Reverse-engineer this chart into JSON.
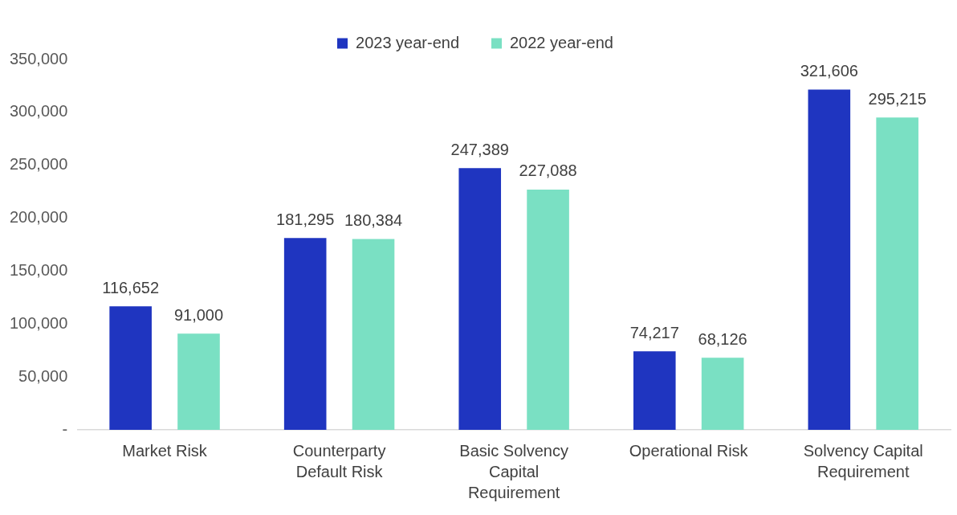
{
  "chart_data": {
    "type": "bar",
    "categories": [
      "Market Risk",
      "Counterparty Default Risk",
      "Basic Solvency Capital Requirement",
      "Operational Risk",
      "Solvency Capital Requirement"
    ],
    "series": [
      {
        "name": "2023 year-end",
        "color": "#1f35c0",
        "values": [
          116652,
          181295,
          247389,
          74217,
          321606
        ],
        "value_labels": [
          "116,652",
          "181,295",
          "247,389",
          "74,217",
          "321,606"
        ]
      },
      {
        "name": "2022 year-end",
        "color": "#7ae0c3",
        "values": [
          91000,
          180384,
          227088,
          68126,
          295215
        ],
        "value_labels": [
          "91,000",
          "180,384",
          "227,088",
          "68,126",
          "295,215"
        ]
      }
    ],
    "ylim": [
      0,
      350000
    ],
    "yticks": [
      {
        "value": 0,
        "label": "-"
      },
      {
        "value": 50000,
        "label": "50,000"
      },
      {
        "value": 100000,
        "label": "100,000"
      },
      {
        "value": 150000,
        "label": "150,000"
      },
      {
        "value": 200000,
        "label": "200,000"
      },
      {
        "value": 250000,
        "label": "250,000"
      },
      {
        "value": 300000,
        "label": "300,000"
      },
      {
        "value": 350000,
        "label": "350,000"
      }
    ],
    "grid": false,
    "legend": "top"
  }
}
